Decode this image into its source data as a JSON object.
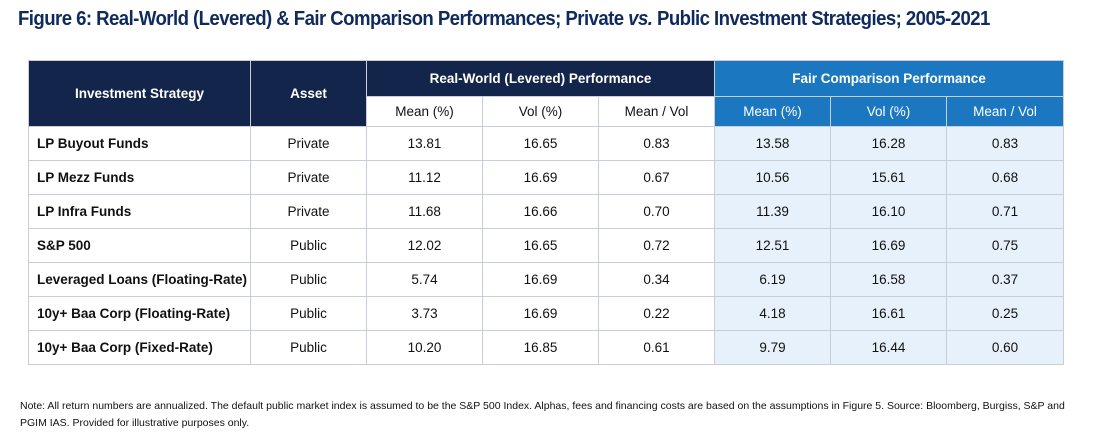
{
  "title": {
    "prefix": "Figure 6: Real-World (Levered) & Fair Comparison Performances; Private ",
    "vs": "vs.",
    "suffix": " Public Investment Strategies; 2005-2021"
  },
  "table": {
    "headers": {
      "strategy": "Investment Strategy",
      "asset": "Asset",
      "real_world": "Real-World (Levered) Performance",
      "fair": "Fair Comparison Performance",
      "sub": [
        "Mean (%)",
        "Vol (%)",
        "Mean / Vol",
        "Mean (%)",
        "Vol (%)",
        "Mean / Vol"
      ]
    },
    "rows": [
      {
        "strategy": "LP Buyout Funds",
        "asset": "Private",
        "values": [
          "13.81",
          "16.65",
          "0.83",
          "13.58",
          "16.28",
          "0.83"
        ]
      },
      {
        "strategy": "LP Mezz Funds",
        "asset": "Private",
        "values": [
          "11.12",
          "16.69",
          "0.67",
          "10.56",
          "15.61",
          "0.68"
        ]
      },
      {
        "strategy": "LP Infra Funds",
        "asset": "Private",
        "values": [
          "11.68",
          "16.66",
          "0.70",
          "11.39",
          "16.10",
          "0.71"
        ]
      },
      {
        "strategy": "S&P 500",
        "asset": "Public",
        "values": [
          "12.02",
          "16.65",
          "0.72",
          "12.51",
          "16.69",
          "0.75"
        ]
      },
      {
        "strategy": "Leveraged Loans (Floating-Rate)",
        "asset": "Public",
        "values": [
          "5.74",
          "16.69",
          "0.34",
          "6.19",
          "16.58",
          "0.37"
        ]
      },
      {
        "strategy": "10y+ Baa Corp (Floating-Rate)",
        "asset": "Public",
        "values": [
          "3.73",
          "16.69",
          "0.22",
          "4.18",
          "16.61",
          "0.25"
        ]
      },
      {
        "strategy": "10y+ Baa Corp (Fixed-Rate)",
        "asset": "Public",
        "values": [
          "10.20",
          "16.85",
          "0.61",
          "9.79",
          "16.44",
          "0.60"
        ]
      }
    ]
  },
  "note": "Note: All return numbers are annualized. The default public market index is assumed to be the S&P 500 Index. Alphas, fees and financing costs are based on the assumptions in Figure 5. Source: Bloomberg, Burgiss, S&P and PGIM IAS. Provided for illustrative purposes only.",
  "colors": {
    "title": "#0f2a5c",
    "header_dark": "#13254a",
    "header_blue": "#1b78c0",
    "fair_cell_bg": "#e6f1fb"
  }
}
